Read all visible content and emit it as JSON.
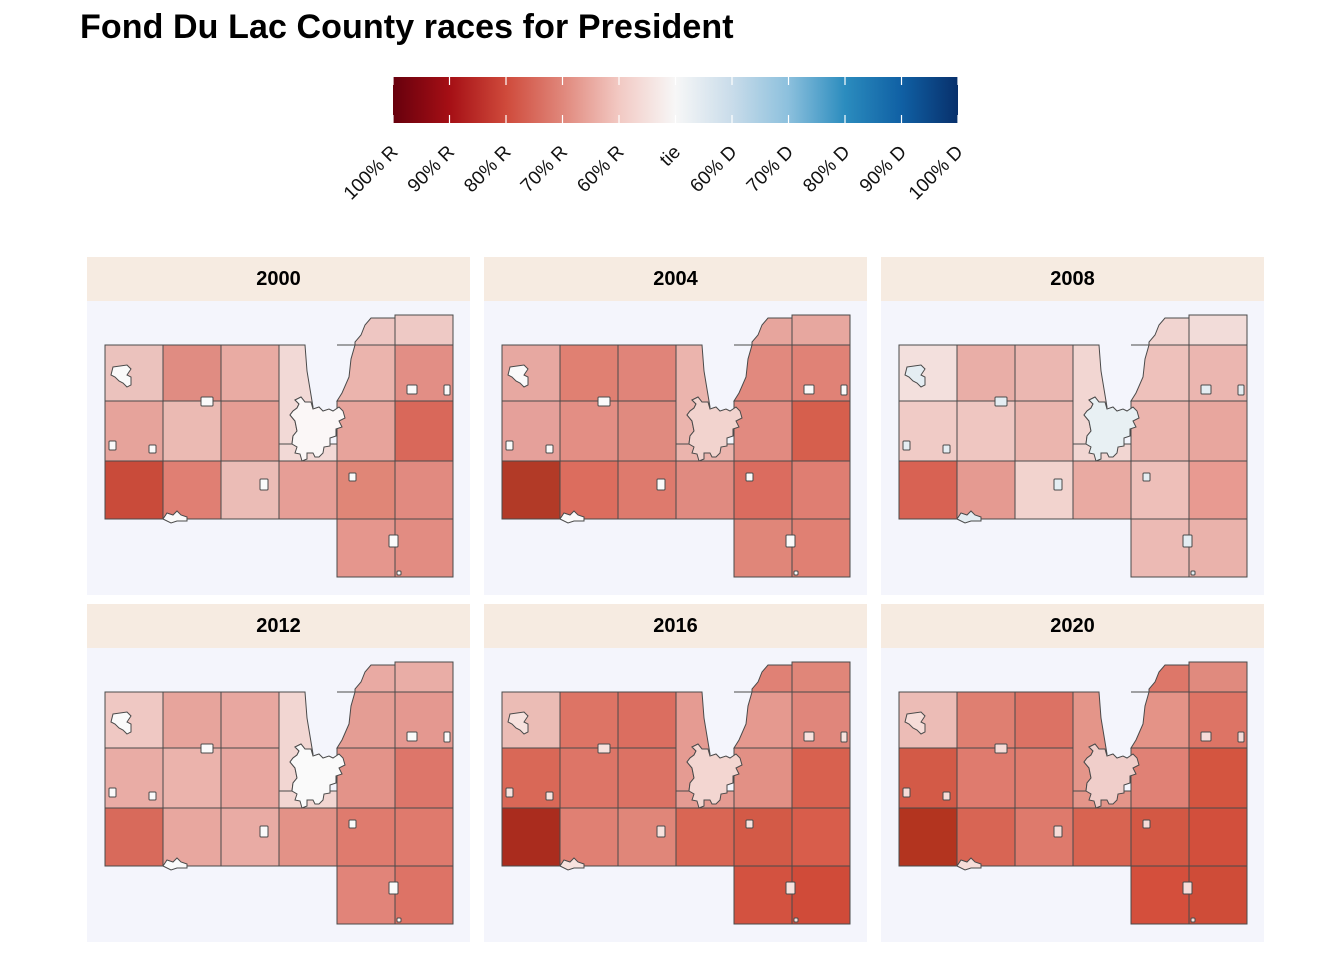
{
  "title": "Fond Du Lac County races for President",
  "legend": {
    "labels": [
      "100% R",
      "90% R",
      "80% R",
      "70% R",
      "60% R",
      "tie",
      "60% D",
      "70% D",
      "80% D",
      "90% D",
      "100% D"
    ],
    "stops": [
      "#67000d",
      "#a50f15",
      "#cf4a3b",
      "#e0877b",
      "#f2c9c3",
      "#f7f7f7",
      "#c9dcea",
      "#8cc0dd",
      "#2b8cbe",
      "#1060a4",
      "#08306b"
    ]
  },
  "panels": [
    {
      "year": "2000",
      "colors": {
        "r0c0": "#ebc2bd",
        "r0c1": "#e08c82",
        "r0c2": "#e9aba3",
        "r0c3": "#f2d9d6",
        "r0c4": "#eec6c2",
        "r0c5": "#eec9c5",
        "r0c6": "#e28e85",
        "r1c0": "#e6a39b",
        "r1c1": "#ebbab3",
        "r1c2": "#e59d94",
        "r1c4": "#ebb4ad",
        "r1c5": "#e7a39b",
        "r1c6": "#d9685a",
        "r2c0": "#c94b3a",
        "r2c1": "#e07f73",
        "r2c2": "#ebbcb6",
        "r2c3": "#e69e96",
        "r2c4": "#e08677",
        "r2c5": "#e18a80",
        "r3c4": "#e5968d",
        "r3c5": "#e28c82",
        "city": "#fafafa",
        "city_fdl": "#fbf7f7"
      }
    },
    {
      "year": "2004",
      "colors": {
        "r0c0": "#e7a8a1",
        "r0c1": "#e08072",
        "r0c2": "#e08479",
        "r0c3": "#ebb4ad",
        "r0c4": "#e7a59d",
        "r0c5": "#e7a79f",
        "r0c6": "#e08276",
        "r1c0": "#e5a09a",
        "r1c1": "#e38e84",
        "r1c2": "#e08a7f",
        "r1c4": "#e1897e",
        "r1c5": "#e18a80",
        "r1c6": "#d65f4d",
        "r2c0": "#b23a27",
        "r2c1": "#dc6d5e",
        "r2c2": "#de7a6d",
        "r2c3": "#e08a80",
        "r2c4": "#db6c5f",
        "r2c5": "#df7e72",
        "r3c4": "#e08679",
        "r3c5": "#e08073",
        "city": "#fafafa",
        "city_fdl": "#f2d3ce"
      }
    },
    {
      "year": "2008",
      "colors": {
        "r0c0": "#f3e0dd",
        "r0c1": "#e9aea7",
        "r0c2": "#ebb7b1",
        "r0c3": "#f2d6d2",
        "r0c4": "#f1d4d0",
        "r0c5": "#f2dcd9",
        "r0c6": "#ebb6b0",
        "r1c0": "#f0cbc6",
        "r1c1": "#efc6c1",
        "r1c2": "#ebb5ae",
        "r1c4": "#eec1bb",
        "r1c5": "#ebb4ad",
        "r1c6": "#e8a69e",
        "r2c0": "#d86253",
        "r2c1": "#e59a91",
        "r2c2": "#f2d3ce",
        "r2c3": "#e9aaa2",
        "r2c4": "#eebfb9",
        "r2c5": "#e89a91",
        "r3c4": "#ecbab4",
        "r3c5": "#eab2ab",
        "city": "#e4edf2",
        "city_fdl": "#e8f0f3"
      }
    },
    {
      "year": "2012",
      "colors": {
        "r0c0": "#efc8c3",
        "r0c1": "#e7a49c",
        "r0c2": "#e8a7a0",
        "r0c3": "#f2d6d2",
        "r0c4": "#e9aaa3",
        "r0c5": "#e9ada6",
        "r0c6": "#e49890",
        "r1c0": "#e9aca5",
        "r1c1": "#ebb3ac",
        "r1c2": "#e8a69f",
        "r1c4": "#e49d94",
        "r1c5": "#e39389",
        "r1c6": "#dd766a",
        "r2c0": "#d86a5b",
        "r2c1": "#e8a79f",
        "r2c2": "#e9aba4",
        "r2c3": "#e39287",
        "r2c4": "#df7b6e",
        "r2c5": "#df7a6d",
        "r3c4": "#e18479",
        "r3c5": "#dd7366",
        "city": "#fafafa",
        "city_fdl": "#fafafa"
      }
    },
    {
      "year": "2016",
      "colors": {
        "r0c0": "#ebbcb5",
        "r0c1": "#dd7465",
        "r0c2": "#db6e60",
        "r0c3": "#e59b92",
        "r0c4": "#e08175",
        "r0c5": "#e08679",
        "r0c6": "#e0867b",
        "r1c0": "#d96857",
        "r1c1": "#dd7567",
        "r1c2": "#dc7264",
        "r1c4": "#e5998f",
        "r1c5": "#e29085",
        "r1c6": "#d8614f",
        "r2c0": "#aa2c1e",
        "r2c1": "#e08073",
        "r2c2": "#e08679",
        "r2c3": "#d96654",
        "r2c4": "#d35a47",
        "r2c5": "#d85d4b",
        "r3c4": "#d35240",
        "r3c5": "#d04b39",
        "city": "#f7e2de",
        "city_fdl": "#f3d6d1"
      }
    },
    {
      "year": "2020",
      "colors": {
        "r0c0": "#ecbcb6",
        "r0c1": "#df7f71",
        "r0c2": "#dc7264",
        "r0c3": "#e49589",
        "r0c4": "#dd7769",
        "r0c5": "#e08a7e",
        "r0c6": "#dd7465",
        "r1c0": "#d35a47",
        "r1c1": "#df7b6e",
        "r1c2": "#df7b6d",
        "r1c4": "#e49387",
        "r1c5": "#e08175",
        "r1c6": "#d45540",
        "r2c0": "#b3341f",
        "r2c1": "#d86554",
        "r2c2": "#de7a6c",
        "r2c3": "#d86451",
        "r2c4": "#d35844",
        "r2c5": "#d24f3c",
        "r3c4": "#d44f3c",
        "r3c5": "#cf4c38",
        "city": "#f6dcd8",
        "city_fdl": "#f0ceca"
      }
    }
  ]
}
